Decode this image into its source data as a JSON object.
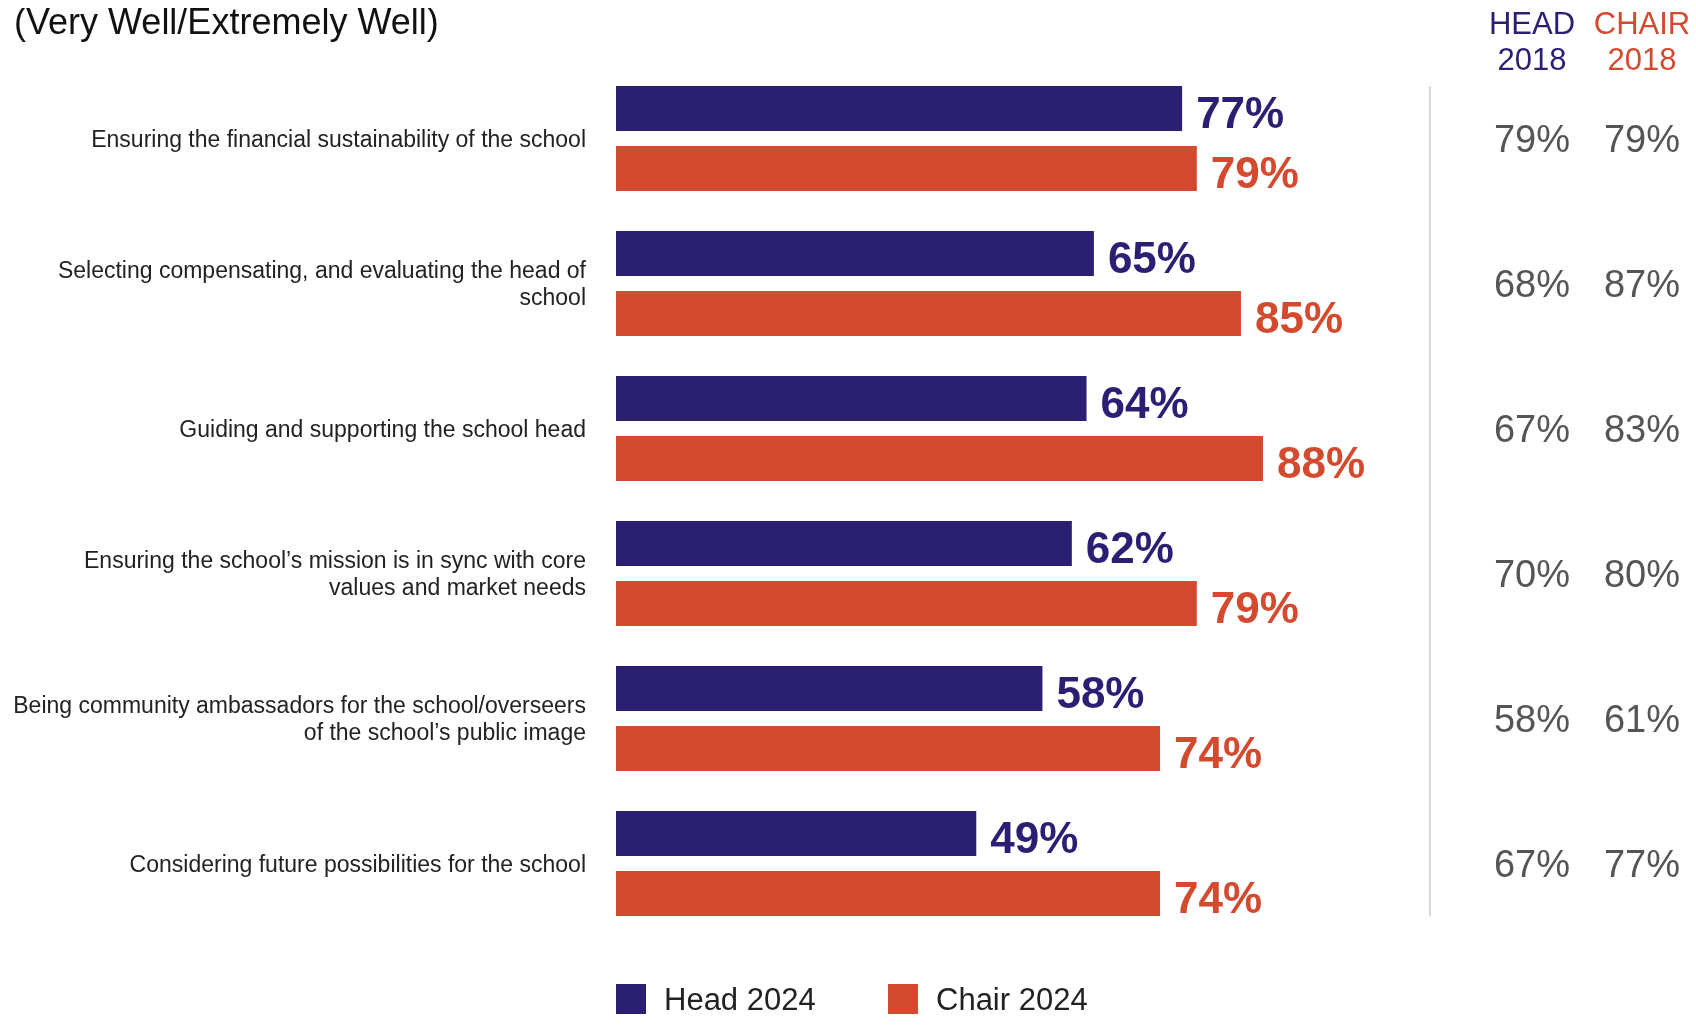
{
  "chart_data": {
    "type": "bar",
    "orientation": "horizontal",
    "title": "(Very Well/Extremely Well)",
    "categories": [
      "Ensuring the financial sustainability of the school",
      "Selecting compensating, and evaluating the head of school",
      "Guiding and supporting the school head",
      "Ensuring the school’s mission is in sync with core values and market needs",
      "Being community ambassadors for the school/overseers of the school’s public image",
      "Considering future possibilities for the school"
    ],
    "series": [
      {
        "name": "Head 2024",
        "color": "#2b1f73",
        "values": [
          77,
          65,
          64,
          62,
          58,
          49
        ],
        "value_labels": [
          "77%",
          "65%",
          "64%",
          "62%",
          "58%",
          "49%"
        ]
      },
      {
        "name": "Chair 2024",
        "color": "#d44a2f",
        "values": [
          79,
          85,
          88,
          79,
          74,
          74
        ],
        "value_labels": [
          "79%",
          "85%",
          "88%",
          "79%",
          "74%",
          "74%"
        ]
      }
    ],
    "legend": "bottom",
    "annotations": [
      "HEAD 2018",
      "CHAIR 2018",
      "79%",
      "79%",
      "68%",
      "87%",
      "67%",
      "83%",
      "70%",
      "80%",
      "58%",
      "61%",
      "67%",
      "77%"
    ]
  }
}
